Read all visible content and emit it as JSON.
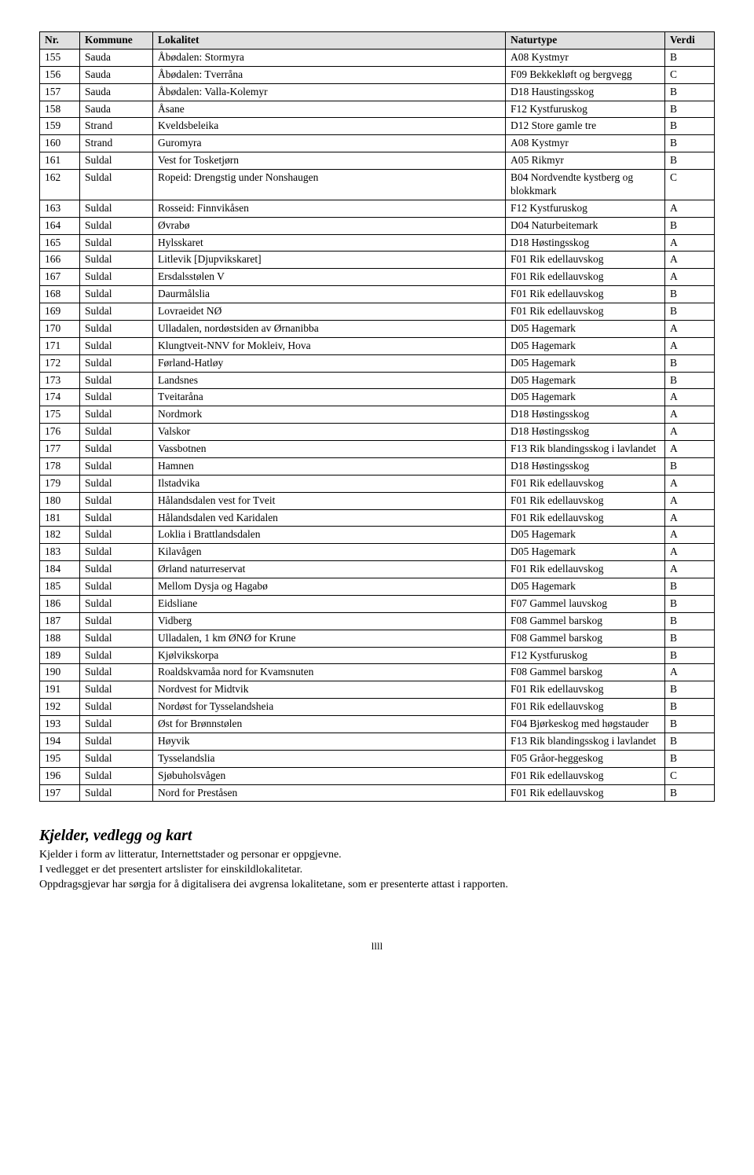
{
  "headers": {
    "nr": "Nr.",
    "kommune": "Kommune",
    "lokalitet": "Lokalitet",
    "naturtype": "Naturtype",
    "verdi": "Verdi"
  },
  "rows": [
    {
      "nr": "155",
      "kommune": "Sauda",
      "lok": "Åbødalen: Stormyra",
      "nat": "A08 Kystmyr",
      "v": "B"
    },
    {
      "nr": "156",
      "kommune": "Sauda",
      "lok": "Åbødalen: Tverråna",
      "nat": "F09 Bekkekløft og bergvegg",
      "v": "C"
    },
    {
      "nr": "157",
      "kommune": "Sauda",
      "lok": "Åbødalen: Valla-Kolemyr",
      "nat": "D18 Haustingsskog",
      "v": "B"
    },
    {
      "nr": "158",
      "kommune": "Sauda",
      "lok": "Åsane",
      "nat": "F12 Kystfuruskog",
      "v": "B"
    },
    {
      "nr": "159",
      "kommune": "Strand",
      "lok": "Kveldsbeleika",
      "nat": "D12 Store gamle tre",
      "v": "B"
    },
    {
      "nr": "160",
      "kommune": "Strand",
      "lok": "Guromyra",
      "nat": "A08 Kystmyr",
      "v": "B"
    },
    {
      "nr": "161",
      "kommune": "Suldal",
      "lok": "Vest for Tosketjørn",
      "nat": "A05 Rikmyr",
      "v": "B"
    },
    {
      "nr": "162",
      "kommune": "Suldal",
      "lok": "Ropeid: Drengstig under Nonshaugen",
      "nat": "B04 Nordvendte kystberg og blokkmark",
      "v": "C"
    },
    {
      "nr": "163",
      "kommune": "Suldal",
      "lok": "Rosseid: Finnvikåsen",
      "nat": "F12 Kystfuruskog",
      "v": "A"
    },
    {
      "nr": "164",
      "kommune": "Suldal",
      "lok": "Øvrabø",
      "nat": "D04 Naturbeitemark",
      "v": "B"
    },
    {
      "nr": "165",
      "kommune": "Suldal",
      "lok": "Hylsskaret",
      "nat": "D18 Høstingsskog",
      "v": "A"
    },
    {
      "nr": "166",
      "kommune": "Suldal",
      "lok": "Litlevik [Djupvikskaret]",
      "nat": "F01 Rik edellauvskog",
      "v": "A"
    },
    {
      "nr": "167",
      "kommune": "Suldal",
      "lok": "Ersdalsstølen V",
      "nat": "F01 Rik edellauvskog",
      "v": "A"
    },
    {
      "nr": "168",
      "kommune": "Suldal",
      "lok": "Daurmålslia",
      "nat": "F01 Rik edellauvskog",
      "v": "B"
    },
    {
      "nr": "169",
      "kommune": "Suldal",
      "lok": "Lovraeidet NØ",
      "nat": "F01 Rik edellauvskog",
      "v": "B"
    },
    {
      "nr": "170",
      "kommune": "Suldal",
      "lok": "Ulladalen, nordøstsiden av Ørnanibba",
      "nat": "D05 Hagemark",
      "v": "A"
    },
    {
      "nr": "171",
      "kommune": "Suldal",
      "lok": "Klungtveit-NNV for Mokleiv, Hova",
      "nat": "D05 Hagemark",
      "v": "A"
    },
    {
      "nr": "172",
      "kommune": "Suldal",
      "lok": "Førland-Hatløy",
      "nat": "D05 Hagemark",
      "v": "B"
    },
    {
      "nr": "173",
      "kommune": "Suldal",
      "lok": "Landsnes",
      "nat": "D05 Hagemark",
      "v": "B"
    },
    {
      "nr": "174",
      "kommune": "Suldal",
      "lok": "Tveitaråna",
      "nat": "D05 Hagemark",
      "v": "A"
    },
    {
      "nr": "175",
      "kommune": "Suldal",
      "lok": "Nordmork",
      "nat": "D18 Høstingsskog",
      "v": "A"
    },
    {
      "nr": "176",
      "kommune": "Suldal",
      "lok": "Valskor",
      "nat": "D18 Høstingsskog",
      "v": "A"
    },
    {
      "nr": "177",
      "kommune": "Suldal",
      "lok": "Vassbotnen",
      "nat": "F13 Rik blandingsskog i lavlandet",
      "v": "A"
    },
    {
      "nr": "178",
      "kommune": "Suldal",
      "lok": "Hamnen",
      "nat": "D18 Høstingsskog",
      "v": "B"
    },
    {
      "nr": "179",
      "kommune": "Suldal",
      "lok": "Ilstadvika",
      "nat": "F01 Rik edellauvskog",
      "v": "A"
    },
    {
      "nr": "180",
      "kommune": "Suldal",
      "lok": "Hålandsdalen vest for Tveit",
      "nat": "F01 Rik edellauvskog",
      "v": "A"
    },
    {
      "nr": "181",
      "kommune": "Suldal",
      "lok": "Hålandsdalen ved Karidalen",
      "nat": "F01 Rik edellauvskog",
      "v": "A"
    },
    {
      "nr": "182",
      "kommune": "Suldal",
      "lok": "Loklia i Brattlandsdalen",
      "nat": "D05 Hagemark",
      "v": "A"
    },
    {
      "nr": "183",
      "kommune": "Suldal",
      "lok": "Kilavågen",
      "nat": "D05 Hagemark",
      "v": "A"
    },
    {
      "nr": "184",
      "kommune": "Suldal",
      "lok": "Ørland naturreservat",
      "nat": "F01 Rik edellauvskog",
      "v": "A"
    },
    {
      "nr": "185",
      "kommune": "Suldal",
      "lok": "Mellom Dysja og Hagabø",
      "nat": "D05 Hagemark",
      "v": "B"
    },
    {
      "nr": "186",
      "kommune": "Suldal",
      "lok": "Eidsliane",
      "nat": "F07 Gammel lauvskog",
      "v": "B"
    },
    {
      "nr": "187",
      "kommune": "Suldal",
      "lok": "Vidberg",
      "nat": "F08 Gammel barskog",
      "v": "B"
    },
    {
      "nr": "188",
      "kommune": "Suldal",
      "lok": "Ulladalen, 1 km ØNØ for Krune",
      "nat": "F08 Gammel barskog",
      "v": "B"
    },
    {
      "nr": "189",
      "kommune": "Suldal",
      "lok": "Kjølvikskorpa",
      "nat": "F12 Kystfuruskog",
      "v": "B"
    },
    {
      "nr": "190",
      "kommune": "Suldal",
      "lok": "Roaldskvamåa nord for Kvamsnuten",
      "nat": "F08 Gammel barskog",
      "v": "A"
    },
    {
      "nr": "191",
      "kommune": "Suldal",
      "lok": "Nordvest for Midtvik",
      "nat": "F01 Rik edellauvskog",
      "v": "B"
    },
    {
      "nr": "192",
      "kommune": "Suldal",
      "lok": "Nordøst for Tysselandsheia",
      "nat": "F01 Rik edellauvskog",
      "v": "B"
    },
    {
      "nr": "193",
      "kommune": "Suldal",
      "lok": "Øst for Brønnstølen",
      "nat": "F04 Bjørkeskog med høgstauder",
      "v": "B"
    },
    {
      "nr": "194",
      "kommune": "Suldal",
      "lok": "Høyvik",
      "nat": "F13 Rik blandingsskog i lavlandet",
      "v": "B"
    },
    {
      "nr": "195",
      "kommune": "Suldal",
      "lok": "Tysselandslia",
      "nat": "F05 Gråor-heggeskog",
      "v": "B"
    },
    {
      "nr": "196",
      "kommune": "Suldal",
      "lok": "Sjøbuholsvågen",
      "nat": "F01 Rik edellauvskog",
      "v": "C"
    },
    {
      "nr": "197",
      "kommune": "Suldal",
      "lok": "Nord for Preståsen",
      "nat": "F01 Rik edellauvskog",
      "v": "B"
    }
  ],
  "afterSection": {
    "heading": "Kjelder, vedlegg og kart",
    "line1": "Kjelder i form av litteratur, Internettstader og personar er oppgjevne.",
    "line2": "I vedlegget er det presentert artslister for einskildlokalitetar.",
    "line3": "Oppdragsgjevar har sørgja for å digitalisera dei avgrensa lokalitetane, som er presenterte attast i rapporten."
  },
  "pageNumber": "llll"
}
